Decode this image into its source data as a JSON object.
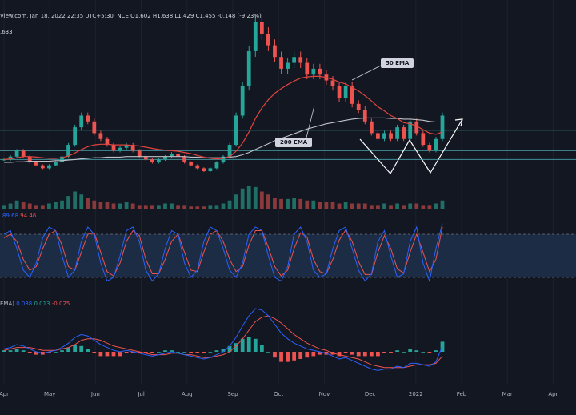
{
  "header": {
    "source_date": "View.com, Jan 18, 2022 22:35 UTC+5:30",
    "ohlc": "NCE O1.602  H1.638  L1.429  C1.455  -0.148 (-9.23%)",
    "sub_value": ".633"
  },
  "rsi_legend": {
    "v1": "89.68",
    "v2": "94.46"
  },
  "macd_legend": {
    "label": "EMA)",
    "v1": "0.038",
    "v2": "0.013",
    "v3": "-0.025"
  },
  "annotations": {
    "ema50": "50 EMA",
    "ema200": "200 EMA"
  },
  "colors": {
    "up": "#26a69a",
    "down": "#ef5350",
    "ema50": "#e0443e",
    "ema200": "#c0c2c8",
    "k": "#2962ff",
    "d": "#ef5350",
    "bg": "#131722"
  },
  "chart_data": {
    "type": "line",
    "x_ticks": [
      "Apr",
      "May",
      "Jun",
      "Jul",
      "Aug",
      "Sep",
      "Oct",
      "Nov",
      "Dec",
      "2022",
      "Feb",
      "Mar",
      "Apr"
    ],
    "price_close": [
      0.55,
      0.6,
      0.7,
      0.6,
      0.5,
      0.45,
      0.4,
      0.45,
      0.5,
      0.6,
      0.8,
      1.1,
      1.3,
      1.2,
      1.0,
      0.9,
      0.8,
      0.7,
      0.75,
      0.8,
      0.7,
      0.6,
      0.55,
      0.5,
      0.55,
      0.6,
      0.65,
      0.6,
      0.5,
      0.45,
      0.4,
      0.35,
      0.4,
      0.5,
      0.6,
      0.8,
      1.3,
      1.8,
      2.4,
      2.9,
      2.7,
      2.5,
      2.3,
      2.1,
      2.2,
      2.3,
      2.2,
      2.0,
      2.1,
      2.0,
      1.9,
      1.8,
      1.6,
      1.8,
      1.5,
      1.4,
      1.2,
      1.0,
      0.9,
      1.0,
      0.9,
      1.1,
      0.9,
      1.2,
      1.0,
      0.8,
      0.7,
      0.9,
      1.3
    ],
    "ema50": [
      0.55,
      0.56,
      0.58,
      0.6,
      0.6,
      0.59,
      0.58,
      0.57,
      0.57,
      0.58,
      0.61,
      0.66,
      0.72,
      0.77,
      0.8,
      0.81,
      0.81,
      0.8,
      0.8,
      0.8,
      0.79,
      0.78,
      0.76,
      0.74,
      0.72,
      0.71,
      0.7,
      0.69,
      0.67,
      0.65,
      0.62,
      0.59,
      0.57,
      0.56,
      0.57,
      0.6,
      0.69,
      0.83,
      1.02,
      1.25,
      1.43,
      1.57,
      1.68,
      1.76,
      1.83,
      1.89,
      1.94,
      1.96,
      1.97,
      1.97,
      1.95,
      1.92,
      1.87,
      1.84,
      1.78,
      1.72,
      1.64,
      1.55,
      1.45,
      1.38,
      1.3,
      1.25,
      1.18,
      1.16,
      1.12,
      1.06,
      1.0,
      0.98,
      1.02
    ],
    "ema200": [
      0.5,
      0.5,
      0.51,
      0.51,
      0.52,
      0.52,
      0.52,
      0.52,
      0.53,
      0.53,
      0.54,
      0.55,
      0.56,
      0.57,
      0.58,
      0.58,
      0.59,
      0.59,
      0.59,
      0.6,
      0.6,
      0.6,
      0.6,
      0.6,
      0.6,
      0.6,
      0.6,
      0.6,
      0.6,
      0.59,
      0.59,
      0.58,
      0.58,
      0.58,
      0.58,
      0.59,
      0.6,
      0.63,
      0.67,
      0.72,
      0.77,
      0.82,
      0.87,
      0.91,
      0.95,
      0.99,
      1.03,
      1.07,
      1.1,
      1.13,
      1.16,
      1.18,
      1.2,
      1.22,
      1.24,
      1.25,
      1.26,
      1.26,
      1.26,
      1.26,
      1.25,
      1.25,
      1.24,
      1.24,
      1.23,
      1.22,
      1.2,
      1.19,
      1.19
    ],
    "horizontal_levels": [
      1.05,
      0.7,
      0.55
    ],
    "volume": [
      3,
      4,
      6,
      5,
      4,
      3,
      3,
      4,
      5,
      6,
      9,
      12,
      10,
      8,
      6,
      5,
      5,
      4,
      4,
      5,
      4,
      3,
      3,
      3,
      3,
      4,
      4,
      3,
      3,
      2,
      2,
      2,
      3,
      3,
      4,
      6,
      10,
      14,
      16,
      15,
      12,
      10,
      8,
      7,
      7,
      8,
      7,
      6,
      6,
      5,
      5,
      5,
      4,
      5,
      4,
      4,
      4,
      3,
      3,
      4,
      3,
      4,
      3,
      4,
      4,
      3,
      3,
      4,
      6
    ],
    "stoch_k": [
      80,
      85,
      60,
      30,
      20,
      40,
      75,
      90,
      85,
      50,
      20,
      30,
      70,
      90,
      80,
      40,
      15,
      20,
      50,
      85,
      90,
      70,
      30,
      15,
      25,
      60,
      85,
      80,
      40,
      20,
      30,
      70,
      90,
      85,
      60,
      30,
      20,
      40,
      80,
      90,
      85,
      50,
      20,
      15,
      35,
      80,
      90,
      70,
      30,
      20,
      25,
      60,
      85,
      90,
      60,
      30,
      15,
      25,
      70,
      85,
      50,
      20,
      25,
      70,
      90,
      40,
      15,
      60,
      95
    ],
    "stoch_d": [
      75,
      80,
      70,
      45,
      30,
      35,
      60,
      80,
      85,
      65,
      35,
      30,
      55,
      80,
      82,
      55,
      28,
      22,
      40,
      70,
      85,
      78,
      45,
      25,
      25,
      45,
      70,
      80,
      55,
      30,
      28,
      55,
      80,
      85,
      70,
      45,
      28,
      35,
      65,
      85,
      85,
      62,
      35,
      22,
      30,
      60,
      82,
      76,
      45,
      28,
      25,
      45,
      72,
      86,
      70,
      42,
      24,
      24,
      55,
      78,
      60,
      32,
      26,
      55,
      80,
      55,
      28,
      45,
      90
    ],
    "macd_line": [
      0.02,
      0.03,
      0.05,
      0.04,
      0.02,
      0.0,
      -0.01,
      0.0,
      0.01,
      0.03,
      0.06,
      0.1,
      0.12,
      0.11,
      0.08,
      0.05,
      0.03,
      0.01,
      0.0,
      0.01,
      0.0,
      -0.01,
      -0.02,
      -0.03,
      -0.02,
      -0.01,
      0.0,
      -0.01,
      -0.02,
      -0.03,
      -0.04,
      -0.05,
      -0.04,
      -0.02,
      0.0,
      0.04,
      0.1,
      0.18,
      0.25,
      0.3,
      0.29,
      0.25,
      0.19,
      0.13,
      0.09,
      0.06,
      0.04,
      0.02,
      0.01,
      0.0,
      -0.01,
      -0.03,
      -0.05,
      -0.04,
      -0.06,
      -0.08,
      -0.1,
      -0.12,
      -0.13,
      -0.12,
      -0.12,
      -0.1,
      -0.11,
      -0.08,
      -0.08,
      -0.09,
      -0.1,
      -0.07,
      0.04
    ],
    "signal_line": [
      0.01,
      0.02,
      0.03,
      0.03,
      0.03,
      0.02,
      0.01,
      0.01,
      0.01,
      0.02,
      0.03,
      0.05,
      0.08,
      0.09,
      0.09,
      0.08,
      0.06,
      0.04,
      0.03,
      0.02,
      0.01,
      0.0,
      -0.01,
      -0.02,
      -0.02,
      -0.02,
      -0.01,
      -0.01,
      -0.02,
      -0.02,
      -0.03,
      -0.04,
      -0.04,
      -0.03,
      -0.02,
      0.0,
      0.04,
      0.09,
      0.15,
      0.21,
      0.24,
      0.25,
      0.23,
      0.2,
      0.16,
      0.12,
      0.09,
      0.06,
      0.04,
      0.02,
      0.01,
      -0.01,
      -0.02,
      -0.03,
      -0.04,
      -0.05,
      -0.07,
      -0.09,
      -0.1,
      -0.11,
      -0.11,
      -0.11,
      -0.11,
      -0.1,
      -0.09,
      -0.09,
      -0.09,
      -0.08,
      -0.03
    ]
  }
}
